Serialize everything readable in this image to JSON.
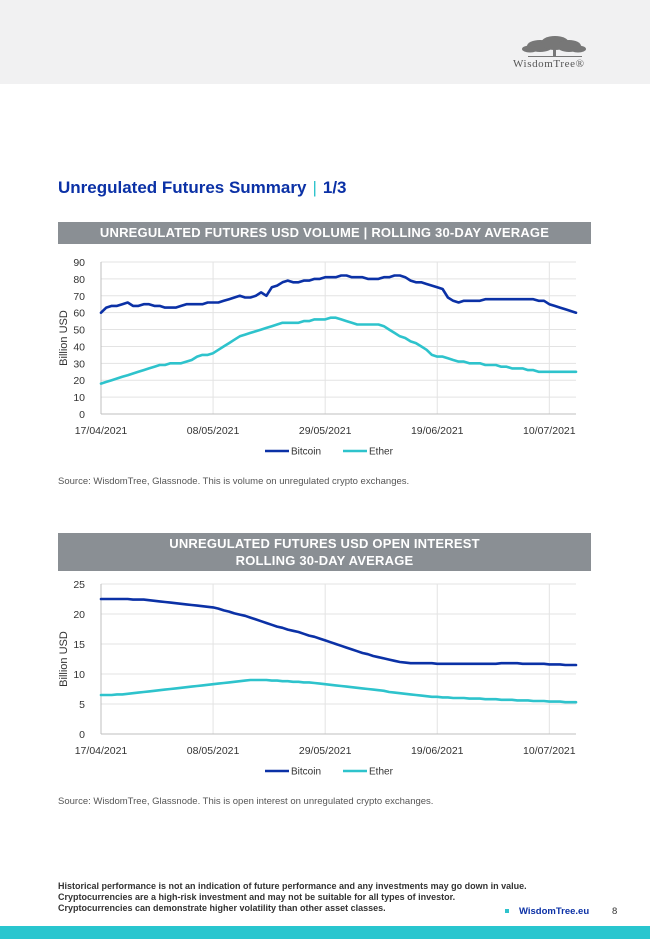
{
  "brand": {
    "logo_text": "WisdomTree®",
    "primary_color": "#0b31a6",
    "accent_color": "#2ec3cc"
  },
  "page": {
    "title": "Unregulated Futures Summary",
    "title_sep": "|",
    "title_page": "1/3"
  },
  "chart1": {
    "header": "UNREGULATED FUTURES USD VOLUME | ROLLING 30-DAY AVERAGE",
    "source": "Source: WisdomTree, Glassnode. This is volume on unregulated crypto exchanges."
  },
  "chart2": {
    "header_line1": "UNREGULATED FUTURES USD OPEN INTEREST",
    "header_line2": "ROLLING 30-DAY AVERAGE",
    "source": "Source: WisdomTree, Glassnode. This is open interest on unregulated crypto exchanges."
  },
  "footer": {
    "disclaimer_1": "Historical performance is not an indication of future performance and any investments may go down in value.",
    "disclaimer_2": "Cryptocurrencies are a high-risk investment and may not be suitable for all types of investor.",
    "disclaimer_3": "Cryptocurrencies can demonstrate higher volatility than other asset classes.",
    "site": "WisdomTree.eu",
    "page_number": "8"
  },
  "chart_data": [
    {
      "type": "line",
      "title": "UNREGULATED FUTURES USD VOLUME | ROLLING 30-DAY AVERAGE",
      "xlabel": "",
      "ylabel": "Billion USD",
      "ylim": [
        0,
        90
      ],
      "yticks": [
        0,
        10,
        20,
        30,
        40,
        50,
        60,
        70,
        80,
        90
      ],
      "xticks": [
        "17/04/2021",
        "08/05/2021",
        "29/05/2021",
        "19/06/2021",
        "10/07/2021"
      ],
      "x_index_range": [
        0,
        89
      ],
      "xtick_index": [
        0,
        21,
        42,
        63,
        84
      ],
      "grid": true,
      "legend": "bottom",
      "series": [
        {
          "name": "Bitcoin",
          "color": "#0b31a6",
          "values": [
            60,
            63,
            64,
            64,
            65,
            66,
            64,
            64,
            65,
            65,
            64,
            64,
            63,
            63,
            63,
            64,
            65,
            65,
            65,
            65,
            66,
            66,
            66,
            67,
            68,
            69,
            70,
            69,
            69,
            70,
            72,
            70,
            75,
            76,
            78,
            79,
            78,
            78,
            79,
            79,
            80,
            80,
            81,
            81,
            81,
            82,
            82,
            81,
            81,
            81,
            80,
            80,
            80,
            81,
            81,
            82,
            82,
            81,
            79,
            78,
            78,
            77,
            76,
            75,
            74,
            69,
            67,
            66,
            67,
            67,
            67,
            67,
            68,
            68,
            68,
            68,
            68,
            68,
            68,
            68,
            68,
            68,
            67,
            67,
            65,
            64,
            63,
            62,
            61,
            60
          ]
        },
        {
          "name": "Ether",
          "color": "#2ec3cc",
          "values": [
            18,
            19,
            20,
            21,
            22,
            23,
            24,
            25,
            26,
            27,
            28,
            29,
            29,
            30,
            30,
            30,
            31,
            32,
            34,
            35,
            35,
            36,
            38,
            40,
            42,
            44,
            46,
            47,
            48,
            49,
            50,
            51,
            52,
            53,
            54,
            54,
            54,
            54,
            55,
            55,
            56,
            56,
            56,
            57,
            57,
            56,
            55,
            54,
            53,
            53,
            53,
            53,
            53,
            52,
            50,
            48,
            46,
            45,
            43,
            42,
            40,
            38,
            35,
            34,
            34,
            33,
            32,
            31,
            31,
            30,
            30,
            30,
            29,
            29,
            29,
            28,
            28,
            27,
            27,
            27,
            26,
            26,
            25,
            25,
            25,
            25,
            25,
            25,
            25,
            25
          ]
        }
      ]
    },
    {
      "type": "line",
      "title": "UNREGULATED FUTURES USD OPEN INTEREST ROLLING 30-DAY AVERAGE",
      "xlabel": "",
      "ylabel": "Billion USD",
      "ylim": [
        0,
        25
      ],
      "yticks": [
        0,
        5,
        10,
        15,
        20,
        25
      ],
      "xticks": [
        "17/04/2021",
        "08/05/2021",
        "29/05/2021",
        "19/06/2021",
        "10/07/2021"
      ],
      "x_index_range": [
        0,
        89
      ],
      "xtick_index": [
        0,
        21,
        42,
        63,
        84
      ],
      "grid": true,
      "legend": "bottom",
      "series": [
        {
          "name": "Bitcoin",
          "color": "#0b31a6",
          "values": [
            22.5,
            22.5,
            22.5,
            22.5,
            22.5,
            22.5,
            22.4,
            22.4,
            22.4,
            22.3,
            22.2,
            22.1,
            22.0,
            21.9,
            21.8,
            21.7,
            21.6,
            21.5,
            21.4,
            21.3,
            21.2,
            21.1,
            20.9,
            20.6,
            20.4,
            20.1,
            19.9,
            19.7,
            19.4,
            19.1,
            18.8,
            18.5,
            18.2,
            17.9,
            17.7,
            17.4,
            17.2,
            17.0,
            16.7,
            16.4,
            16.2,
            15.9,
            15.6,
            15.3,
            15.0,
            14.7,
            14.4,
            14.1,
            13.8,
            13.5,
            13.3,
            13.0,
            12.8,
            12.6,
            12.4,
            12.2,
            12.0,
            11.9,
            11.8,
            11.8,
            11.8,
            11.8,
            11.8,
            11.7,
            11.7,
            11.7,
            11.7,
            11.7,
            11.7,
            11.7,
            11.7,
            11.7,
            11.7,
            11.7,
            11.7,
            11.8,
            11.8,
            11.8,
            11.8,
            11.7,
            11.7,
            11.7,
            11.7,
            11.7,
            11.6,
            11.6,
            11.6,
            11.5,
            11.5,
            11.5
          ]
        },
        {
          "name": "Ether",
          "color": "#2ec3cc",
          "values": [
            6.5,
            6.5,
            6.5,
            6.6,
            6.6,
            6.7,
            6.8,
            6.9,
            7.0,
            7.1,
            7.2,
            7.3,
            7.4,
            7.5,
            7.6,
            7.7,
            7.8,
            7.9,
            8.0,
            8.1,
            8.2,
            8.3,
            8.4,
            8.5,
            8.6,
            8.7,
            8.8,
            8.9,
            9.0,
            9.0,
            9.0,
            9.0,
            8.9,
            8.9,
            8.8,
            8.8,
            8.7,
            8.7,
            8.6,
            8.6,
            8.5,
            8.4,
            8.3,
            8.2,
            8.1,
            8.0,
            7.9,
            7.8,
            7.7,
            7.6,
            7.5,
            7.4,
            7.3,
            7.2,
            7.0,
            6.9,
            6.8,
            6.7,
            6.6,
            6.5,
            6.4,
            6.3,
            6.2,
            6.2,
            6.1,
            6.1,
            6.0,
            6.0,
            6.0,
            5.9,
            5.9,
            5.9,
            5.8,
            5.8,
            5.8,
            5.7,
            5.7,
            5.7,
            5.6,
            5.6,
            5.6,
            5.5,
            5.5,
            5.5,
            5.4,
            5.4,
            5.4,
            5.3,
            5.3,
            5.3
          ]
        }
      ]
    }
  ]
}
